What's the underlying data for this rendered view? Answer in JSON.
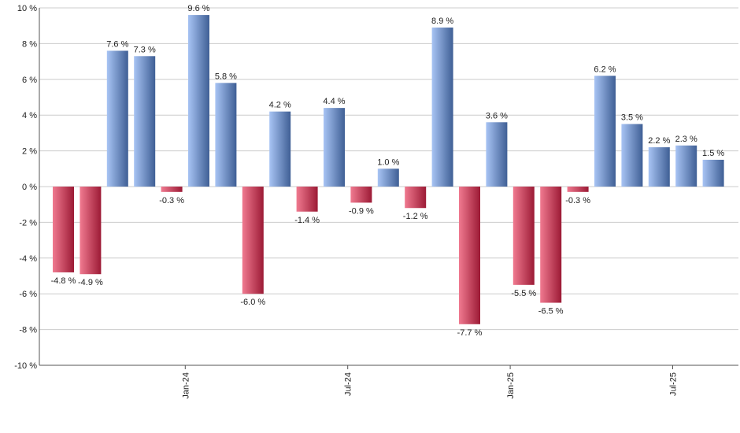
{
  "chart_data": {
    "type": "bar",
    "title": "",
    "xlabel": "",
    "ylabel": "",
    "ylim": [
      -10,
      10
    ],
    "yticks": [
      10,
      8,
      6,
      4,
      2,
      0,
      -2,
      -4,
      -6,
      -8,
      -10
    ],
    "ytick_labels": [
      "10 %",
      "8 %",
      "6 %",
      "4 %",
      "2 %",
      "0 %",
      "-2 %",
      "-4 %",
      "-6 %",
      "-8 %",
      "-10 %"
    ],
    "xtick_labels": [
      {
        "label": "Jan-24",
        "after_index": 4
      },
      {
        "label": "Jul-24",
        "after_index": 10
      },
      {
        "label": "Jan-25",
        "after_index": 16
      },
      {
        "label": "Jul-25",
        "after_index": 22
      }
    ],
    "values": [
      -4.8,
      -4.9,
      7.6,
      7.3,
      -0.3,
      9.6,
      5.8,
      -6.0,
      4.2,
      -1.4,
      4.4,
      -0.9,
      1.0,
      -1.2,
      8.9,
      -7.7,
      3.6,
      -5.5,
      -6.5,
      -0.3,
      6.2,
      3.5,
      2.2,
      2.3,
      1.5
    ],
    "labels": [
      "-4.8 %",
      "-4.9 %",
      "7.6 %",
      "7.3 %",
      "-0.3 %",
      "9.6 %",
      "5.8 %",
      "-6.0 %",
      "4.2 %",
      "-1.4 %",
      "4.4 %",
      "-0.9 %",
      "1.0 %",
      "-1.2 %",
      "8.9 %",
      "-7.7 %",
      "3.6 %",
      "-5.5 %",
      "-6.5 %",
      "-0.3 %",
      "6.2 %",
      "3.5 %",
      "2.2 %",
      "2.3 %",
      "1.5 %"
    ],
    "grid": true,
    "legend": "none"
  },
  "colors": {
    "positive_light": "#a8c4f4",
    "positive_dark": "#3f5f95",
    "negative_light": "#f07a90",
    "negative_dark": "#9c1a35",
    "grid": "#cccccc",
    "axis": "#555555"
  }
}
